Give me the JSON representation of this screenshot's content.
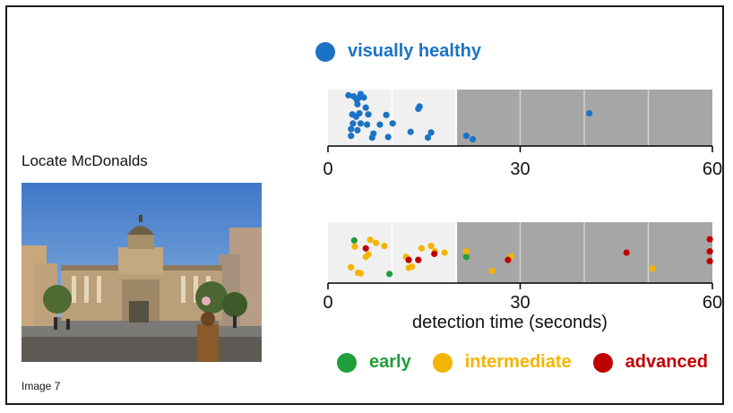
{
  "task": {
    "label": "Locate McDonalds"
  },
  "image_caption": "Image 7",
  "colors": {
    "healthy": "#1a73c6",
    "early": "#1f9e3a",
    "intermediate": "#f4b400",
    "advanced": "#c00000",
    "panel_light": "#f0f0f0",
    "panel_dark": "#a6a6a6"
  },
  "legend_top": {
    "healthy": "visually healthy"
  },
  "legend_bottom": {
    "early": "early",
    "intermediate": "intermediate",
    "advanced": "advanced"
  },
  "chart_data": [
    {
      "type": "scatter",
      "xlabel": "",
      "xlim": [
        0,
        60
      ],
      "xticks": [
        "0",
        "30",
        "60"
      ],
      "shaded_from": 20,
      "grid": true,
      "series": [
        {
          "name": "visually healthy",
          "color_key": "healthy",
          "points": [
            [
              3.2,
              0.9
            ],
            [
              4.0,
              0.88
            ],
            [
              4.5,
              0.82
            ],
            [
              4.9,
              0.86
            ],
            [
              5.1,
              0.92
            ],
            [
              5.6,
              0.86
            ],
            [
              4.6,
              0.74
            ],
            [
              5.9,
              0.68
            ],
            [
              3.8,
              0.56
            ],
            [
              4.4,
              0.52
            ],
            [
              4.9,
              0.58
            ],
            [
              6.3,
              0.56
            ],
            [
              9.1,
              0.55
            ],
            [
              3.9,
              0.4
            ],
            [
              5.1,
              0.4
            ],
            [
              6.1,
              0.38
            ],
            [
              8.1,
              0.38
            ],
            [
              10.1,
              0.4
            ],
            [
              3.6,
              0.3
            ],
            [
              4.6,
              0.28
            ],
            [
              7.1,
              0.22
            ],
            [
              3.6,
              0.18
            ],
            [
              6.9,
              0.15
            ],
            [
              9.4,
              0.16
            ],
            [
              12.9,
              0.25
            ],
            [
              15.6,
              0.15
            ],
            [
              16.1,
              0.24
            ],
            [
              14.3,
              0.7
            ],
            [
              14.1,
              0.66
            ],
            [
              21.6,
              0.18
            ],
            [
              22.6,
              0.12
            ],
            [
              40.8,
              0.58
            ]
          ]
        }
      ]
    },
    {
      "type": "scatter",
      "xlabel": "detection time (seconds)",
      "xlim": [
        0,
        60
      ],
      "xticks": [
        "0",
        "30",
        "60"
      ],
      "shaded_from": 20,
      "grid": true,
      "series": [
        {
          "name": "early",
          "color_key": "early",
          "points": [
            [
              4.1,
              0.7
            ],
            [
              9.6,
              0.15
            ],
            [
              21.6,
              0.43
            ]
          ]
        },
        {
          "name": "intermediate",
          "color_key": "intermediate",
          "points": [
            [
              4.2,
              0.6
            ],
            [
              6.3,
              0.47
            ],
            [
              6.6,
              0.71
            ],
            [
              7.5,
              0.66
            ],
            [
              8.8,
              0.61
            ],
            [
              12.2,
              0.43
            ],
            [
              12.6,
              0.25
            ],
            [
              13.1,
              0.27
            ],
            [
              14.6,
              0.57
            ],
            [
              16.1,
              0.61
            ],
            [
              16.7,
              0.52
            ],
            [
              18.2,
              0.5
            ],
            [
              21.6,
              0.52
            ],
            [
              28.6,
              0.44
            ],
            [
              25.6,
              0.2
            ],
            [
              50.6,
              0.24
            ],
            [
              3.6,
              0.26
            ],
            [
              5.1,
              0.16
            ],
            [
              4.7,
              0.17
            ],
            [
              5.9,
              0.43
            ]
          ]
        },
        {
          "name": "advanced",
          "color_key": "advanced",
          "points": [
            [
              5.9,
              0.57
            ],
            [
              12.6,
              0.38
            ],
            [
              14.1,
              0.38
            ],
            [
              16.6,
              0.48
            ],
            [
              28.1,
              0.38
            ],
            [
              46.6,
              0.5
            ],
            [
              59.6,
              0.72
            ],
            [
              59.6,
              0.52
            ],
            [
              59.6,
              0.36
            ]
          ]
        }
      ]
    }
  ]
}
